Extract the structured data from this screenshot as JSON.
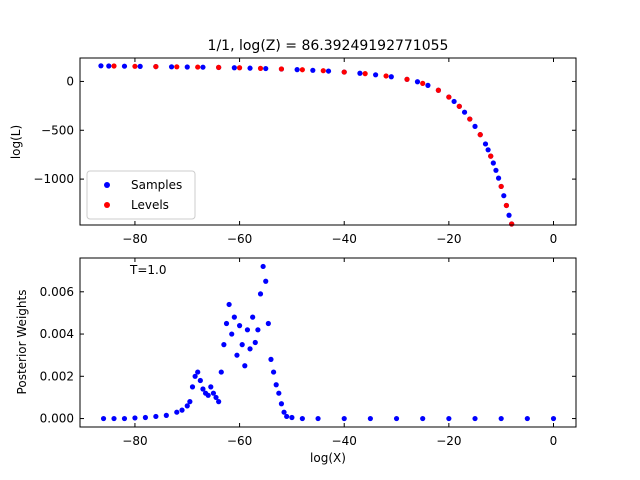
{
  "chart_data": [
    {
      "type": "scatter",
      "title": "1/1, log(Z) = 86.39249192771055",
      "xlabel": "",
      "ylabel": "log(L)",
      "xlim": [
        -90.5,
        4.3
      ],
      "ylim": [
        -1470,
        240
      ],
      "xticks": [
        -80,
        -60,
        -40,
        -20,
        0
      ],
      "xtick_labels": [
        "−80",
        "−60",
        "−40",
        "−20",
        "0"
      ],
      "yticks": [
        0,
        -500,
        -1000
      ],
      "ytick_labels": [
        "0",
        "−500",
        "−1000"
      ],
      "legend": {
        "placement": "lower-left",
        "entries": [
          "Samples",
          "Levels"
        ]
      },
      "series": [
        {
          "name": "Samples",
          "color": "#0000ff",
          "x": [
            -86.5,
            -85,
            -82,
            -79,
            -76,
            -73,
            -70,
            -67,
            -64,
            -61,
            -58,
            -55,
            -52,
            -49,
            -46,
            -43,
            -40,
            -37,
            -34,
            -31,
            -28,
            -26,
            -24,
            -22,
            -20,
            -19,
            -18,
            -17,
            -16,
            -15,
            -14,
            -13,
            -12.5,
            -12,
            -11.5,
            -11,
            -10.5,
            -10,
            -9.5,
            -9,
            -8.5,
            -8
          ],
          "y": [
            160,
            158,
            156,
            154,
            152,
            150,
            148,
            146,
            143,
            140,
            136,
            132,
            127,
            121,
            114,
            106,
            96,
            84,
            68,
            48,
            22,
            -3,
            -40,
            -90,
            -160,
            -205,
            -255,
            -315,
            -385,
            -460,
            -545,
            -640,
            -700,
            -765,
            -835,
            -910,
            -990,
            -1075,
            -1170,
            -1270,
            -1370,
            -1460
          ]
        },
        {
          "name": "Levels",
          "color": "#ff0000",
          "x": [
            -84,
            -80,
            -76,
            -72,
            -68,
            -64,
            -60,
            -56,
            -52,
            -48,
            -44,
            -40,
            -36,
            -32,
            -28,
            -25,
            -22,
            -20,
            -18,
            -16,
            -14,
            -12,
            -10,
            -9,
            -8
          ],
          "y": [
            158,
            155,
            152,
            150,
            147,
            144,
            140,
            134,
            128,
            120,
            110,
            96,
            80,
            56,
            22,
            -20,
            -90,
            -160,
            -255,
            -385,
            -545,
            -765,
            -1075,
            -1270,
            -1460
          ]
        }
      ]
    },
    {
      "type": "scatter",
      "title": "",
      "xlabel": "log(X)",
      "ylabel": "Posterior Weights",
      "annotation": "T=1.0",
      "xlim": [
        -90.5,
        4.3
      ],
      "ylim": [
        -0.0004,
        0.0076
      ],
      "xticks": [
        -80,
        -60,
        -40,
        -20,
        0
      ],
      "xtick_labels": [
        "−80",
        "−60",
        "−40",
        "−20",
        "0"
      ],
      "yticks": [
        0,
        0.002,
        0.004,
        0.006
      ],
      "ytick_labels": [
        "0.000",
        "0.002",
        "0.004",
        "0.006"
      ],
      "series": [
        {
          "name": "",
          "color": "#0000ff",
          "x": [
            -86,
            -84,
            -82,
            -80,
            -78,
            -76,
            -74,
            -72,
            -71,
            -70,
            -69.5,
            -69,
            -68.5,
            -68,
            -67.5,
            -67,
            -66.5,
            -66,
            -65.5,
            -65,
            -64.5,
            -64,
            -63.5,
            -63,
            -62.5,
            -62,
            -61.5,
            -61,
            -60.5,
            -60,
            -59.5,
            -59,
            -58.5,
            -58,
            -57.5,
            -57,
            -56.5,
            -56,
            -55.5,
            -55,
            -54.5,
            -54,
            -53.5,
            -53,
            -52.5,
            -52,
            -51.5,
            -51,
            -50,
            -48,
            -45,
            -40,
            -35,
            -30,
            -25,
            -20,
            -15,
            -10,
            -5,
            0
          ],
          "y": [
            0.0,
            0.0,
            0.0,
            3e-05,
            5e-05,
            0.0001,
            0.00015,
            0.0003,
            0.0004,
            0.0006,
            0.0008,
            0.0015,
            0.002,
            0.0022,
            0.0018,
            0.0014,
            0.0012,
            0.0011,
            0.0015,
            0.0012,
            0.001,
            0.0008,
            0.0022,
            0.0035,
            0.0045,
            0.0054,
            0.004,
            0.0048,
            0.003,
            0.0044,
            0.0035,
            0.0025,
            0.0042,
            0.0033,
            0.0048,
            0.0036,
            0.0042,
            0.0059,
            0.0072,
            0.0065,
            0.0045,
            0.0028,
            0.0022,
            0.0016,
            0.0012,
            0.0007,
            0.0003,
            0.0001,
            5e-05,
            0.0,
            0.0,
            0.0,
            0.0,
            0.0,
            0.0,
            0.0,
            0.0,
            0.0,
            0.0,
            0.0
          ]
        }
      ]
    }
  ]
}
